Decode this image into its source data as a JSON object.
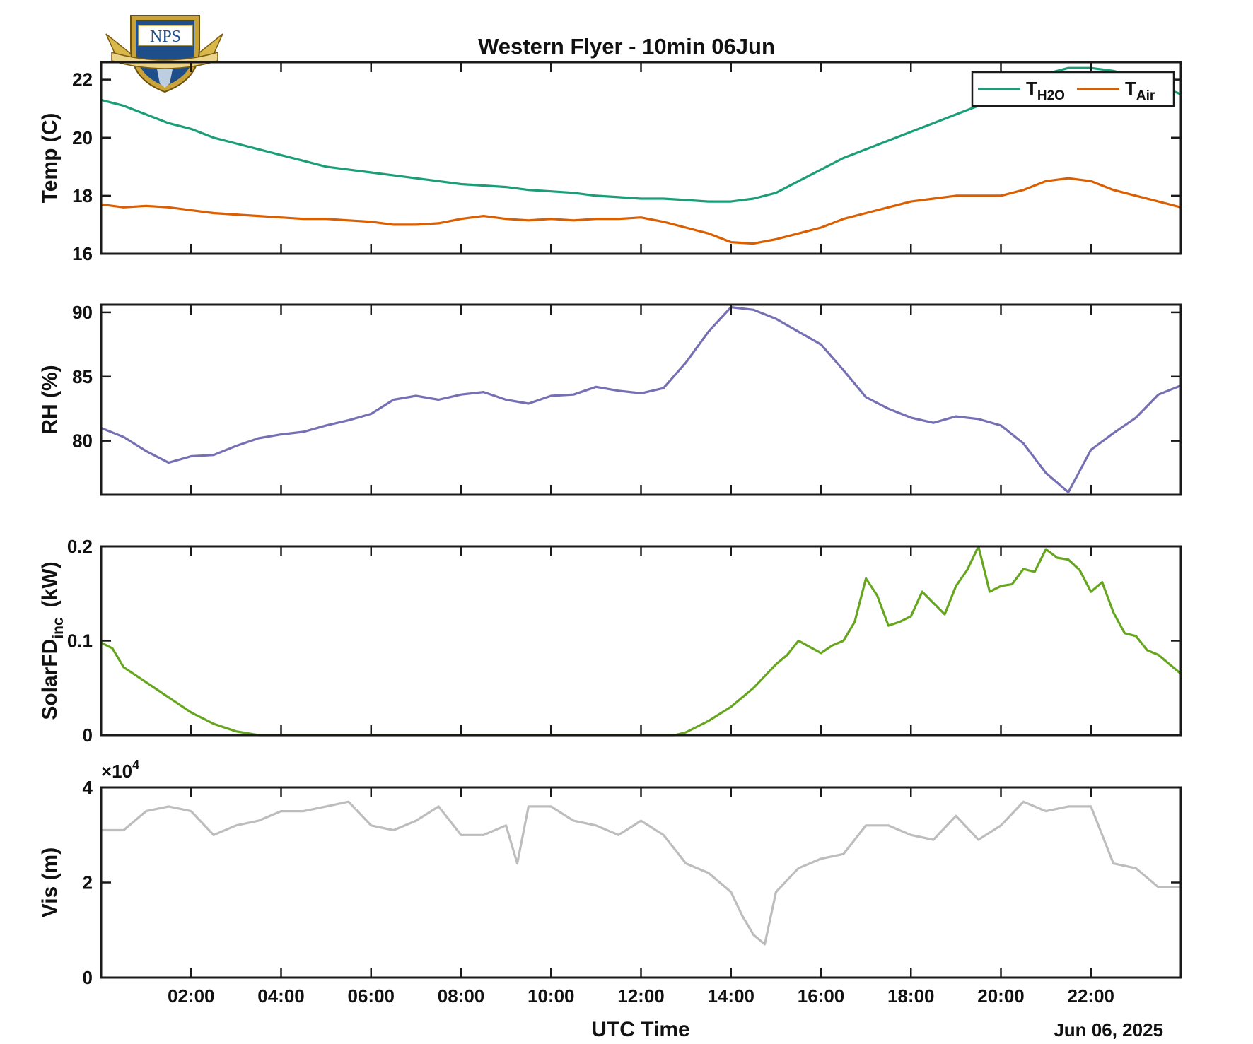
{
  "title": "Western Flyer - 10min 06Jun",
  "x_axis": {
    "label": "UTC Time",
    "date_label": "Jun 06, 2025",
    "tick_labels": [
      "02:00",
      "04:00",
      "06:00",
      "08:00",
      "10:00",
      "12:00",
      "14:00",
      "16:00",
      "18:00",
      "20:00",
      "22:00"
    ]
  },
  "logo": {
    "text": "NPS",
    "motto": "PRAESTANTIA PER SCIENTIAM"
  },
  "colors": {
    "h2o": "#1b9e77",
    "air": "#d95f02",
    "rh": "#7570b3",
    "solar": "#66a61e",
    "vis": "#bdbdbd"
  },
  "chart_data": [
    {
      "type": "line",
      "ylabel": "Temp (C)",
      "ylim": [
        16,
        22.6
      ],
      "yticks": [
        "16",
        "18",
        "20",
        "22"
      ],
      "xlim": [
        0,
        24
      ],
      "legend": {
        "placement": "top-right"
      },
      "series": [
        {
          "name": "T_H2O",
          "label_main": "T",
          "label_sub": "H2O",
          "color": "#1b9e77",
          "x": [
            0,
            0.5,
            1,
            1.5,
            2,
            2.5,
            3,
            3.5,
            4,
            4.5,
            5,
            5.5,
            6,
            6.5,
            7,
            7.5,
            8,
            8.5,
            9,
            9.5,
            10,
            10.5,
            11,
            11.5,
            12,
            12.5,
            13,
            13.5,
            14,
            14.5,
            15,
            15.5,
            16,
            16.5,
            17,
            17.5,
            18,
            18.5,
            19,
            19.5,
            20,
            20.5,
            21,
            21.5,
            22,
            22.5,
            23,
            23.5,
            24
          ],
          "y": [
            21.3,
            21.1,
            20.8,
            20.5,
            20.3,
            20.0,
            19.8,
            19.6,
            19.4,
            19.2,
            19.0,
            18.9,
            18.8,
            18.7,
            18.6,
            18.5,
            18.4,
            18.35,
            18.3,
            18.2,
            18.15,
            18.1,
            18.0,
            17.95,
            17.9,
            17.9,
            17.85,
            17.8,
            17.8,
            17.9,
            18.1,
            18.5,
            18.9,
            19.3,
            19.6,
            19.9,
            20.2,
            20.5,
            20.8,
            21.1,
            21.5,
            21.9,
            22.2,
            22.4,
            22.4,
            22.3,
            22.1,
            21.8,
            21.5
          ]
        },
        {
          "name": "T_Air",
          "label_main": "T",
          "label_sub": "Air",
          "color": "#d95f02",
          "x": [
            0,
            0.5,
            1,
            1.5,
            2,
            2.5,
            3,
            3.5,
            4,
            4.5,
            5,
            5.5,
            6,
            6.5,
            7,
            7.5,
            8,
            8.5,
            9,
            9.5,
            10,
            10.5,
            11,
            11.5,
            12,
            12.5,
            13,
            13.5,
            14,
            14.5,
            15,
            15.5,
            16,
            16.5,
            17,
            17.5,
            18,
            18.5,
            19,
            19.5,
            20,
            20.5,
            21,
            21.5,
            22,
            22.5,
            23,
            23.5,
            24
          ],
          "y": [
            17.7,
            17.6,
            17.65,
            17.6,
            17.5,
            17.4,
            17.35,
            17.3,
            17.25,
            17.2,
            17.2,
            17.15,
            17.1,
            17.0,
            17.0,
            17.05,
            17.2,
            17.3,
            17.2,
            17.15,
            17.2,
            17.15,
            17.2,
            17.2,
            17.25,
            17.1,
            16.9,
            16.7,
            16.4,
            16.35,
            16.5,
            16.7,
            16.9,
            17.2,
            17.4,
            17.6,
            17.8,
            17.9,
            18.0,
            18.0,
            18.0,
            18.2,
            18.5,
            18.6,
            18.5,
            18.2,
            18.0,
            17.8,
            17.6
          ]
        }
      ]
    },
    {
      "type": "line",
      "ylabel": "RH (%)",
      "ylim": [
        75.8,
        90.6
      ],
      "yticks": [
        "80",
        "85",
        "90"
      ],
      "xlim": [
        0,
        24
      ],
      "series": [
        {
          "name": "",
          "color": "#7570b3",
          "x": [
            0,
            0.5,
            1,
            1.5,
            2,
            2.5,
            3,
            3.5,
            4,
            4.5,
            5,
            5.5,
            6,
            6.5,
            7,
            7.5,
            8,
            8.5,
            9,
            9.5,
            10,
            10.5,
            11,
            11.5,
            12,
            12.5,
            13,
            13.5,
            14,
            14.5,
            15,
            15.5,
            16,
            16.5,
            17,
            17.5,
            18,
            18.5,
            19,
            19.5,
            20,
            20.5,
            21,
            21.5,
            22,
            22.5,
            23,
            23.5,
            24
          ],
          "y": [
            81,
            80.3,
            79.2,
            78.3,
            78.8,
            78.9,
            79.6,
            80.2,
            80.5,
            80.7,
            81.2,
            81.6,
            82.1,
            83.2,
            83.5,
            83.2,
            83.6,
            83.8,
            83.2,
            82.9,
            83.5,
            83.6,
            84.2,
            83.9,
            83.7,
            84.1,
            86.1,
            88.5,
            90.4,
            90.2,
            89.5,
            88.5,
            87.5,
            85.5,
            83.4,
            82.5,
            81.8,
            81.4,
            81.9,
            81.7,
            81.2,
            79.8,
            77.5,
            76.0,
            79.3,
            80.6,
            81.8,
            83.6,
            84.3
          ]
        }
      ]
    },
    {
      "type": "line",
      "ylabel": "SolarFD",
      "ylabel_sub": "inc",
      "ylabel_unit": "(kW)",
      "ylim": [
        0,
        0.2
      ],
      "yticks": [
        "0",
        "0.1",
        "0.2"
      ],
      "xlim": [
        0,
        24
      ],
      "series": [
        {
          "name": "",
          "color": "#66a61e",
          "x": [
            0,
            0.25,
            0.5,
            1,
            1.5,
            2,
            2.5,
            3,
            3.5,
            4,
            5,
            6,
            7,
            8,
            9,
            10,
            11,
            12,
            12.75,
            13,
            13.5,
            14,
            14.5,
            15,
            15.25,
            15.5,
            16,
            16.25,
            16.5,
            16.75,
            17,
            17.25,
            17.5,
            17.75,
            18,
            18.25,
            18.5,
            18.75,
            19,
            19.25,
            19.5,
            19.75,
            20,
            20.25,
            20.5,
            20.75,
            21,
            21.25,
            21.5,
            21.75,
            22,
            22.25,
            22.5,
            22.75,
            23,
            23.25,
            23.5,
            23.75,
            24
          ],
          "y": [
            0.098,
            0.092,
            0.072,
            0.056,
            0.04,
            0.024,
            0.012,
            0.004,
            0.0,
            0.0,
            0.0,
            0.0,
            0.0,
            0.0,
            0.0,
            0.0,
            0.0,
            0.0,
            0.0,
            0.003,
            0.015,
            0.03,
            0.05,
            0.075,
            0.085,
            0.1,
            0.087,
            0.095,
            0.1,
            0.12,
            0.166,
            0.148,
            0.116,
            0.12,
            0.126,
            0.152,
            0.14,
            0.128,
            0.158,
            0.175,
            0.2,
            0.152,
            0.158,
            0.16,
            0.176,
            0.173,
            0.197,
            0.188,
            0.186,
            0.175,
            0.152,
            0.162,
            0.13,
            0.108,
            0.105,
            0.09,
            0.085,
            0.075,
            0.065
          ]
        }
      ]
    },
    {
      "type": "line",
      "ylabel": "Vis (m)",
      "multiplier": "×10",
      "multiplier_exp": "4",
      "ylim": [
        0,
        4
      ],
      "yticks": [
        "0",
        "2",
        "4"
      ],
      "xlim": [
        0,
        24
      ],
      "series": [
        {
          "name": "",
          "color": "#bdbdbd",
          "x": [
            0,
            0.5,
            1,
            1.5,
            2,
            2.5,
            3,
            3.5,
            4,
            4.5,
            5,
            5.5,
            6,
            6.5,
            7,
            7.5,
            8,
            8.5,
            9,
            9.25,
            9.5,
            10,
            10.5,
            11,
            11.5,
            12,
            12.5,
            13,
            13.5,
            14,
            14.25,
            14.5,
            14.75,
            15,
            15.5,
            16,
            16.5,
            17,
            17.5,
            18,
            18.5,
            19,
            19.5,
            20,
            20.5,
            21,
            21.5,
            22,
            22.25,
            22.5,
            23,
            23.5,
            24
          ],
          "y": [
            3.1,
            3.1,
            3.5,
            3.6,
            3.5,
            3.0,
            3.2,
            3.3,
            3.5,
            3.5,
            3.6,
            3.7,
            3.2,
            3.1,
            3.3,
            3.6,
            3.0,
            3.0,
            3.2,
            2.4,
            3.6,
            3.6,
            3.3,
            3.2,
            3.0,
            3.3,
            3.0,
            2.4,
            2.2,
            1.8,
            1.3,
            0.9,
            0.7,
            1.8,
            2.3,
            2.5,
            2.6,
            3.2,
            3.2,
            3.0,
            2.9,
            3.4,
            2.9,
            3.2,
            3.7,
            3.5,
            3.6,
            3.6,
            3.0,
            2.4,
            2.3,
            1.9,
            1.9
          ]
        }
      ]
    }
  ]
}
